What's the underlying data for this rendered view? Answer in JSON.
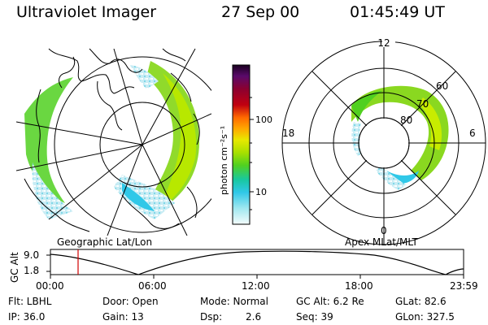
{
  "header": {
    "instrument": "Ultraviolet Imager",
    "date": "27 Sep 00",
    "time": "01:45:49 UT"
  },
  "colorbar": {
    "unit_label": "photon cm⁻²s⁻¹",
    "ticks": [
      "100",
      "10"
    ],
    "colors": [
      "#1a0020",
      "#5a0a6a",
      "#8b0030",
      "#c00010",
      "#e82010",
      "#ff6a00",
      "#ffa800",
      "#e8e800",
      "#a8e000",
      "#50d020",
      "#18c8a0",
      "#30c8e8",
      "#a0e8f0",
      "#e8f8f8"
    ]
  },
  "left_map": {
    "caption": "Geographic Lat/Lon"
  },
  "right_map": {
    "caption": "Apex MLat/MLT",
    "mlt_labels": {
      "top": "12",
      "left": "18",
      "right": "6",
      "bottom": "0"
    },
    "lat_labels": [
      "60",
      "70",
      "80"
    ]
  },
  "timeline": {
    "axis_label": "GC Alt",
    "y_ticks": [
      "9.0",
      "1.8"
    ],
    "x_ticks": [
      "00:00",
      "06:00",
      "12:00",
      "18:00",
      "23:59"
    ],
    "marker_color": "#d00000"
  },
  "status": {
    "row1": {
      "flt": "Flt: LBHL",
      "door": "Door: Open",
      "mode": "Mode: Normal",
      "gc_alt": "GC Alt: 6.2 Re",
      "glat": "GLat:  82.6"
    },
    "row2": {
      "ip": "IP: 36.0",
      "gain": "Gain: 13",
      "dsp_label": "Dsp:",
      "dsp_value": "2.6",
      "seq": "Seq: 39",
      "glon": "GLon: 327.5"
    }
  }
}
